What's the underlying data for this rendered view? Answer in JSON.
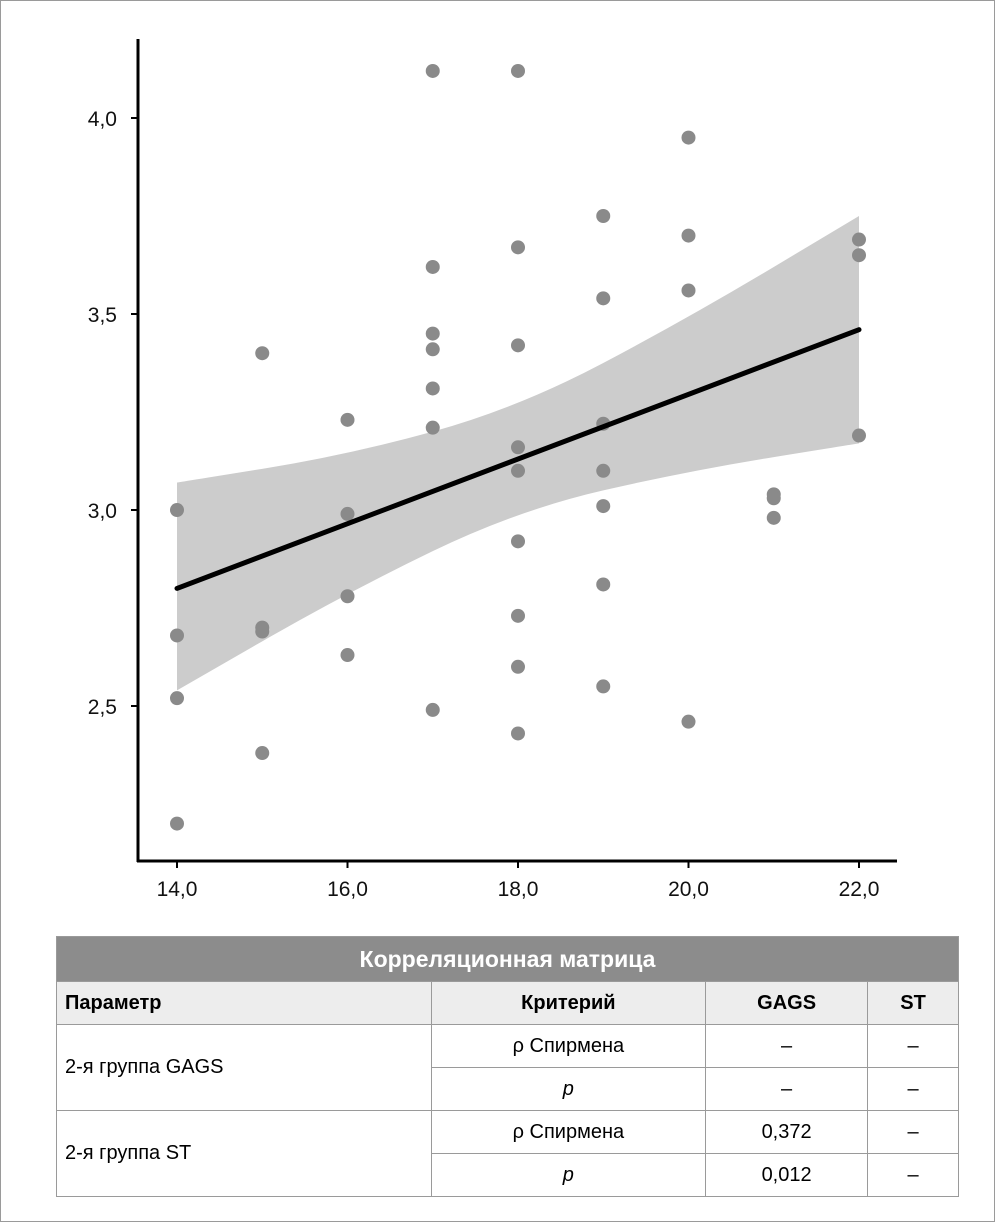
{
  "chart_data": {
    "type": "scatter",
    "title": "",
    "xlabel": "",
    "ylabel": "",
    "xlim": [
      13.75,
      22.45
    ],
    "ylim": [
      2.1,
      4.2
    ],
    "xticks": [
      "14,0",
      "16,0",
      "18,0",
      "20,0",
      "22,0"
    ],
    "xtick_values": [
      14,
      16,
      18,
      20,
      22
    ],
    "yticks": [
      "2,5",
      "3,0",
      "3,5",
      "4,0"
    ],
    "ytick_values": [
      2.5,
      3.0,
      3.5,
      4.0
    ],
    "points": [
      [
        14,
        3.0
      ],
      [
        14,
        2.68
      ],
      [
        14,
        2.52
      ],
      [
        14,
        2.2
      ],
      [
        15,
        3.4
      ],
      [
        15,
        2.7
      ],
      [
        15,
        2.69
      ],
      [
        15,
        2.38
      ],
      [
        16,
        3.23
      ],
      [
        16,
        2.99
      ],
      [
        16,
        2.78
      ],
      [
        16,
        2.63
      ],
      [
        17,
        4.12
      ],
      [
        17,
        3.62
      ],
      [
        17,
        3.45
      ],
      [
        17,
        3.41
      ],
      [
        17,
        3.31
      ],
      [
        17,
        3.21
      ],
      [
        17,
        2.49
      ],
      [
        18,
        4.12
      ],
      [
        18,
        3.67
      ],
      [
        18,
        3.42
      ],
      [
        18,
        3.16
      ],
      [
        18,
        3.1
      ],
      [
        18,
        2.92
      ],
      [
        18,
        2.73
      ],
      [
        18,
        2.6
      ],
      [
        18,
        2.43
      ],
      [
        19,
        3.75
      ],
      [
        19,
        3.54
      ],
      [
        19,
        3.22
      ],
      [
        19,
        3.1
      ],
      [
        19,
        3.01
      ],
      [
        19,
        2.81
      ],
      [
        19,
        2.55
      ],
      [
        20,
        3.95
      ],
      [
        20,
        3.7
      ],
      [
        20,
        3.56
      ],
      [
        20,
        2.46
      ],
      [
        21,
        3.04
      ],
      [
        21,
        3.03
      ],
      [
        21,
        2.98
      ],
      [
        22,
        3.69
      ],
      [
        22,
        3.65
      ],
      [
        22,
        3.19
      ]
    ],
    "regression": {
      "x": [
        14,
        22
      ],
      "y": [
        2.8,
        3.46
      ]
    },
    "ci": {
      "x": [
        14,
        16,
        18,
        20,
        22
      ],
      "upper": [
        3.07,
        3.14,
        3.26,
        3.49,
        3.75
      ],
      "lower": [
        2.54,
        2.79,
        3.0,
        3.1,
        3.17
      ]
    },
    "colors": {
      "point": "#8a8a8a",
      "line": "#000000",
      "band": "#cccccc"
    }
  },
  "table": {
    "title": "Корреляционная матрица",
    "headers": [
      "Параметр",
      "Критерий",
      "GAGS",
      "ST"
    ],
    "groups": [
      {
        "name": "2-я группа GAGS",
        "rows": [
          [
            "ρ Спирмена",
            "–",
            "–"
          ],
          [
            "p",
            "–",
            "–"
          ]
        ]
      },
      {
        "name": "2-я группа ST",
        "rows": [
          [
            "ρ Спирмена",
            "0,372",
            "–"
          ],
          [
            "p",
            "0,012",
            "–"
          ]
        ]
      }
    ]
  }
}
